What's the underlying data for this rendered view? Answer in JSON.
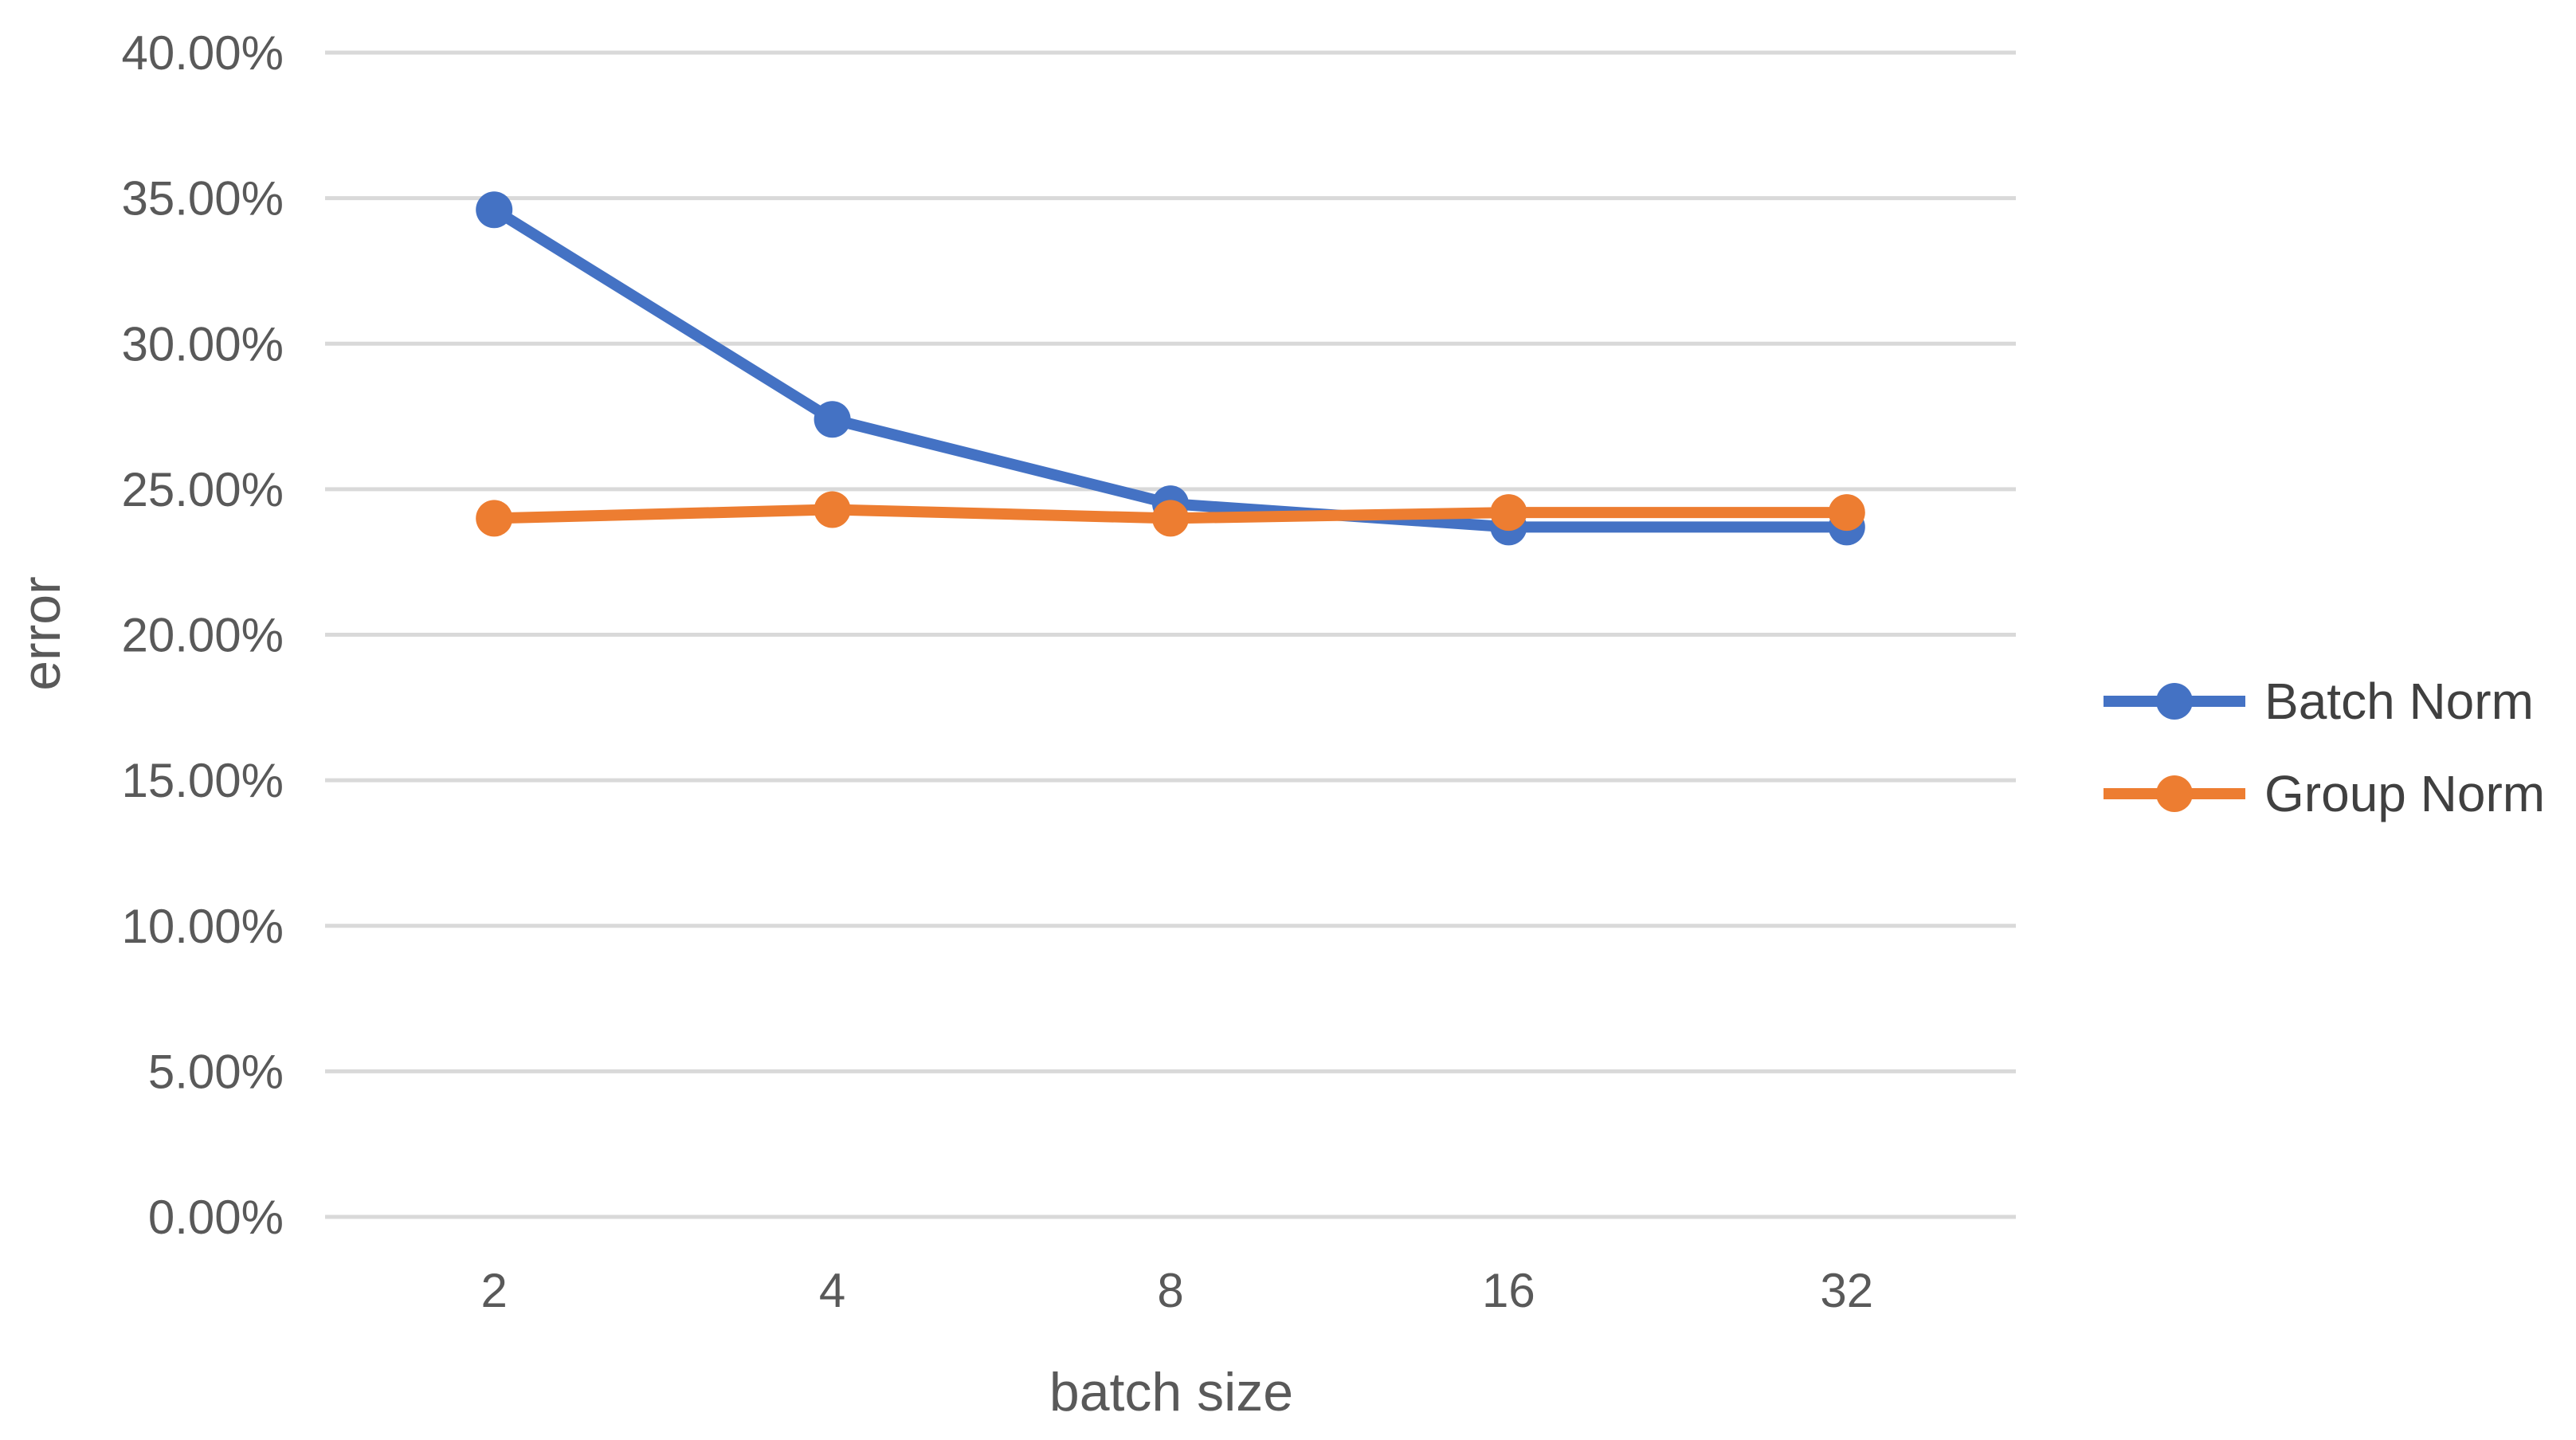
{
  "chart_data": {
    "type": "line",
    "categories": [
      "2",
      "4",
      "8",
      "16",
      "32"
    ],
    "series": [
      {
        "name": "Batch Norm",
        "values": [
          34.6,
          27.4,
          24.5,
          23.7,
          23.7
        ],
        "color": "#4472c4"
      },
      {
        "name": "Group Norm",
        "values": [
          24.0,
          24.3,
          24.0,
          24.2,
          24.2
        ],
        "color": "#ed7d31"
      }
    ],
    "y_ticks": [
      "0.00%",
      "5.00%",
      "10.00%",
      "15.00%",
      "20.00%",
      "25.00%",
      "30.00%",
      "35.00%",
      "40.00%"
    ],
    "xlabel": "batch size",
    "ylabel": "error",
    "ylim": [
      0,
      40
    ],
    "y_unit": "percent",
    "grid": true,
    "legend_position": "right"
  }
}
